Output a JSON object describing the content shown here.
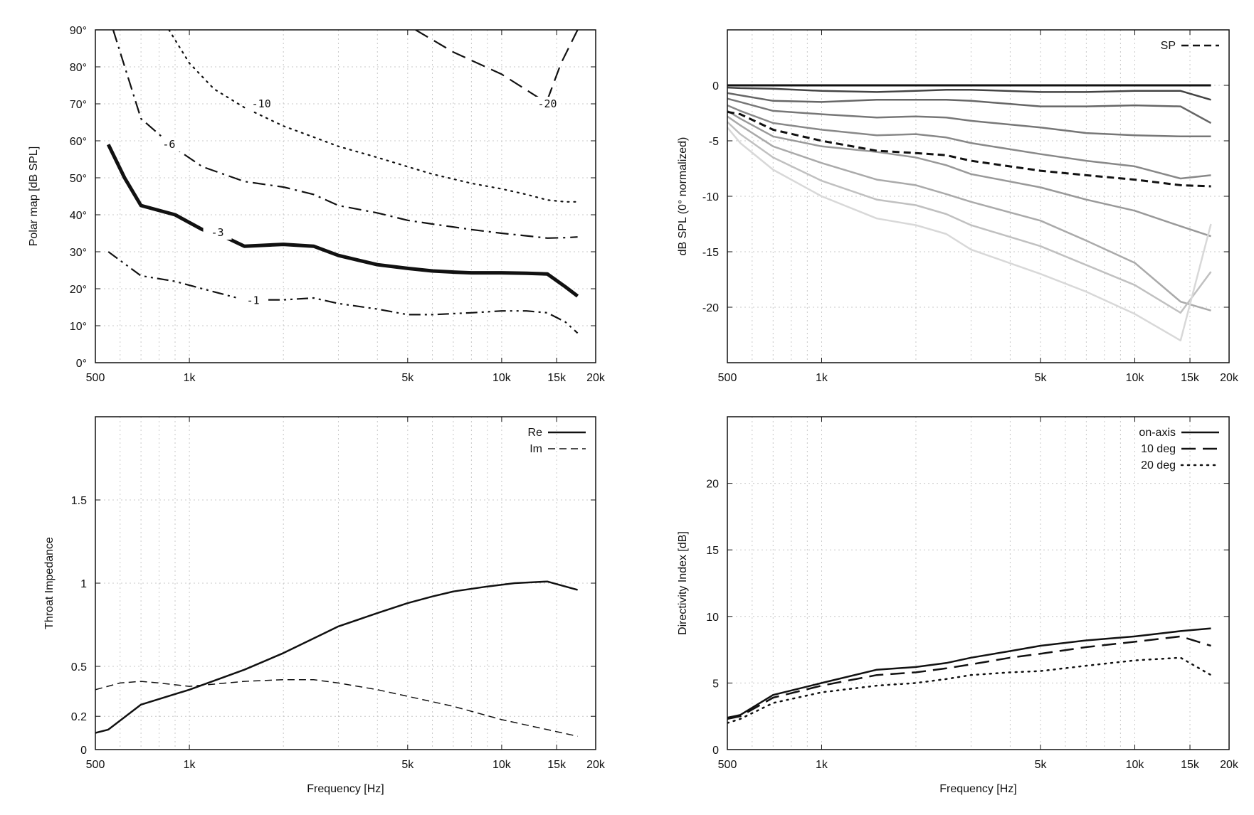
{
  "chart_data": [
    {
      "type": "line",
      "id": "polar-map",
      "xscale": "log",
      "xlim": [
        500,
        20000
      ],
      "ylim": [
        0,
        90
      ],
      "grid": true,
      "xlabel": "",
      "ylabel": "Polar map [dB SPL]",
      "xticks": [
        {
          "v": 500,
          "label": "500"
        },
        {
          "v": 1000,
          "label": "1k"
        },
        {
          "v": 5000,
          "label": "5k"
        },
        {
          "v": 10000,
          "label": "10k"
        },
        {
          "v": 15000,
          "label": "15k"
        },
        {
          "v": 20000,
          "label": "20k"
        }
      ],
      "yticks": [
        {
          "v": 0,
          "label": "0°"
        },
        {
          "v": 10,
          "label": "10°"
        },
        {
          "v": 20,
          "label": "20°"
        },
        {
          "v": 30,
          "label": "30°"
        },
        {
          "v": 40,
          "label": "40°"
        },
        {
          "v": 50,
          "label": "50°"
        },
        {
          "v": 60,
          "label": "60°"
        },
        {
          "v": 70,
          "label": "70°"
        },
        {
          "v": 80,
          "label": "80°"
        },
        {
          "v": 90,
          "label": "90°"
        }
      ],
      "series": [
        {
          "label": "-1",
          "style": "dashdotdot",
          "width": 2.2,
          "x": [
            550,
            700,
            900,
            1100,
            1500,
            2000,
            2500,
            3000,
            4000,
            5000,
            6000,
            8000,
            10000,
            12000,
            14000,
            16000,
            17500
          ],
          "y": [
            30,
            23.5,
            22,
            20,
            17,
            17,
            17.5,
            16,
            14.5,
            13,
            13,
            13.5,
            14,
            14,
            13.5,
            11,
            8
          ]
        },
        {
          "label": "-3",
          "style": "solid",
          "width": 5,
          "x": [
            550,
            620,
            700,
            900,
            1100,
            1300,
            1500,
            2000,
            2500,
            3000,
            4000,
            5000,
            6000,
            7000,
            8000,
            10000,
            12000,
            14000,
            16000,
            17500
          ],
          "y": [
            59,
            50,
            42.5,
            40,
            36,
            34,
            31.5,
            32,
            31.5,
            29,
            26.5,
            25.5,
            24.8,
            24.5,
            24.3,
            24.3,
            24.2,
            24,
            20.5,
            18
          ]
        },
        {
          "label": "-6",
          "style": "dashdot",
          "width": 2.2,
          "x": [
            570,
            700,
            900,
            1100,
            1500,
            2000,
            2500,
            3000,
            4000,
            5000,
            6000,
            8000,
            10000,
            12000,
            14000,
            16000,
            17500
          ],
          "y": [
            90,
            66,
            58,
            53,
            49,
            47.5,
            45.5,
            42.5,
            40.5,
            38.5,
            37.5,
            36,
            35,
            34.3,
            33.7,
            33.8,
            34
          ]
        },
        {
          "label": "-10",
          "style": "dotted",
          "width": 2.2,
          "x": [
            860,
            1000,
            1200,
            1500,
            2000,
            2500,
            3000,
            4000,
            5000,
            6000,
            8000,
            10000,
            12000,
            14000,
            16000,
            17500
          ],
          "y": [
            90,
            81,
            74,
            69,
            64,
            61,
            58.5,
            55.5,
            53,
            51,
            48.5,
            47,
            45.5,
            44,
            43.5,
            43.5
          ]
        },
        {
          "label": "-20",
          "style": "longdash",
          "width": 2.2,
          "x": [
            5300,
            7000,
            10000,
            13500,
            14000,
            15500,
            17500
          ],
          "y": [
            90,
            84,
            78,
            71,
            71,
            81,
            90
          ]
        }
      ],
      "contour_labels": [
        {
          "text": "-1",
          "x": 1600,
          "y": 16.8
        },
        {
          "text": "-3",
          "x": 1230,
          "y": 35.2
        },
        {
          "text": "-6",
          "x": 860,
          "y": 59
        },
        {
          "text": "-10",
          "x": 1700,
          "y": 70
        },
        {
          "text": "-20",
          "x": 14000,
          "y": 70
        }
      ]
    },
    {
      "type": "line",
      "id": "spl-normalized",
      "xscale": "log",
      "xlim": [
        500,
        20000
      ],
      "ylim": [
        -25,
        5
      ],
      "grid": true,
      "xlabel": "",
      "ylabel": "dB SPL (0° normalized)",
      "legend": "top-right",
      "legend_entries": [
        {
          "name": "SP",
          "style": "dashed"
        }
      ],
      "xticks": [
        {
          "v": 500,
          "label": "500"
        },
        {
          "v": 1000,
          "label": "1k"
        },
        {
          "v": 5000,
          "label": "5k"
        },
        {
          "v": 10000,
          "label": "10k"
        },
        {
          "v": 15000,
          "label": "15k"
        },
        {
          "v": 20000,
          "label": "20k"
        }
      ],
      "yticks": [
        {
          "v": 0,
          "label": "0"
        },
        {
          "v": -5,
          "label": "-5"
        },
        {
          "v": -10,
          "label": "-10"
        },
        {
          "v": -15,
          "label": "-15"
        },
        {
          "v": -20,
          "label": "-20"
        }
      ],
      "x": [
        500,
        550,
        700,
        1000,
        1500,
        2000,
        2500,
        3000,
        5000,
        7000,
        10000,
        14000,
        17500
      ],
      "series": [
        {
          "color": "#111111",
          "width": 3,
          "y": [
            0,
            0,
            0,
            0,
            0,
            0,
            0,
            0,
            0,
            0,
            0,
            0,
            0
          ]
        },
        {
          "color": "#444444",
          "width": 2.5,
          "y": [
            -0.2,
            -0.25,
            -0.3,
            -0.5,
            -0.6,
            -0.5,
            -0.4,
            -0.4,
            -0.6,
            -0.6,
            -0.5,
            -0.5,
            -1.3
          ]
        },
        {
          "color": "#666666",
          "width": 2.5,
          "y": [
            -0.7,
            -0.9,
            -1.4,
            -1.5,
            -1.3,
            -1.3,
            -1.3,
            -1.4,
            -1.9,
            -1.9,
            -1.8,
            -1.9,
            -3.4
          ]
        },
        {
          "color": "#777777",
          "width": 2.5,
          "y": [
            -1.2,
            -1.5,
            -2.3,
            -2.6,
            -2.9,
            -2.8,
            -2.9,
            -3.2,
            -3.8,
            -4.3,
            -4.5,
            -4.6,
            -4.6
          ]
        },
        {
          "color": "#888888",
          "width": 2.5,
          "y": [
            -1.8,
            -2.3,
            -3.4,
            -4.0,
            -4.5,
            -4.4,
            -4.7,
            -5.2,
            -6.2,
            -6.8,
            -7.3,
            -8.4,
            -8.1
          ]
        },
        {
          "color": "#999999",
          "width": 2.5,
          "y": [
            -2.3,
            -3.0,
            -4.6,
            -5.5,
            -6.0,
            -6.5,
            -7.2,
            -8.0,
            -9.2,
            -10.3,
            -11.3,
            -12.7,
            -13.6
          ]
        },
        {
          "color": "#aaaaaa",
          "width": 2.5,
          "y": [
            -2.8,
            -3.6,
            -5.5,
            -7.0,
            -8.5,
            -9.0,
            -9.8,
            -10.5,
            -12.2,
            -14.0,
            -16.0,
            -19.5,
            -20.3
          ]
        },
        {
          "color": "#c0c0c0",
          "width": 2.5,
          "y": [
            -3.3,
            -4.4,
            -6.5,
            -8.6,
            -10.3,
            -10.8,
            -11.6,
            -12.6,
            -14.5,
            -16.2,
            -18.0,
            -20.5,
            -16.8
          ]
        },
        {
          "color": "#d8d8d8",
          "width": 2.5,
          "y": [
            -3.8,
            -5.2,
            -7.6,
            -10.0,
            -12.0,
            -12.6,
            -13.4,
            -14.8,
            -17.0,
            -18.6,
            -20.6,
            -23.0,
            -12.5
          ]
        },
        {
          "name": "SP",
          "color": "#111111",
          "width": 3,
          "style": "dashed",
          "y": [
            -2.4,
            -2.6,
            -4.0,
            -5.0,
            -5.9,
            -6.1,
            -6.3,
            -6.8,
            -7.7,
            -8.1,
            -8.5,
            -9.0,
            -9.1
          ]
        }
      ]
    },
    {
      "type": "line",
      "id": "throat-impedance",
      "xscale": "log",
      "xlim": [
        500,
        20000
      ],
      "ylim": [
        0,
        2
      ],
      "grid": true,
      "xlabel": "Frequency [Hz]",
      "ylabel": "Throat Impedance",
      "legend": "top-right",
      "xticks": [
        {
          "v": 500,
          "label": "500"
        },
        {
          "v": 1000,
          "label": "1k"
        },
        {
          "v": 5000,
          "label": "5k"
        },
        {
          "v": 10000,
          "label": "10k"
        },
        {
          "v": 15000,
          "label": "15k"
        },
        {
          "v": 20000,
          "label": "20k"
        }
      ],
      "yticks": [
        {
          "v": 0,
          "label": "0"
        },
        {
          "v": 0.2,
          "label": "0.2"
        },
        {
          "v": 0.5,
          "label": "0.5"
        },
        {
          "v": 1,
          "label": "1"
        },
        {
          "v": 1.5,
          "label": "1.5"
        }
      ],
      "series": [
        {
          "name": "Re",
          "style": "solid",
          "width": 2.5,
          "x": [
            500,
            550,
            700,
            1000,
            1500,
            2000,
            3000,
            4000,
            5000,
            6000,
            7000,
            9000,
            11000,
            14000,
            17500
          ],
          "y": [
            0.1,
            0.12,
            0.27,
            0.36,
            0.48,
            0.58,
            0.74,
            0.82,
            0.88,
            0.92,
            0.95,
            0.98,
            1.0,
            1.01,
            0.96
          ]
        },
        {
          "name": "Im",
          "style": "dashed",
          "width": 1.5,
          "x": [
            500,
            600,
            700,
            800,
            1000,
            1500,
            2000,
            2500,
            3000,
            4000,
            5000,
            7000,
            10000,
            14000,
            17500
          ],
          "y": [
            0.36,
            0.4,
            0.41,
            0.4,
            0.38,
            0.41,
            0.42,
            0.42,
            0.4,
            0.36,
            0.32,
            0.26,
            0.18,
            0.12,
            0.08
          ]
        }
      ]
    },
    {
      "type": "line",
      "id": "directivity-index",
      "xscale": "log",
      "xlim": [
        500,
        20000
      ],
      "ylim": [
        0,
        25
      ],
      "grid": true,
      "xlabel": "Frequency [Hz]",
      "ylabel": "Directivity Index [dB]",
      "legend": "top-right",
      "xticks": [
        {
          "v": 500,
          "label": "500"
        },
        {
          "v": 1000,
          "label": "1k"
        },
        {
          "v": 5000,
          "label": "5k"
        },
        {
          "v": 10000,
          "label": "10k"
        },
        {
          "v": 15000,
          "label": "15k"
        },
        {
          "v": 20000,
          "label": "20k"
        }
      ],
      "yticks": [
        {
          "v": 0,
          "label": "0"
        },
        {
          "v": 5,
          "label": "5"
        },
        {
          "v": 10,
          "label": "10"
        },
        {
          "v": 15,
          "label": "15"
        },
        {
          "v": 20,
          "label": "20"
        }
      ],
      "series": [
        {
          "name": "on-axis",
          "style": "solid",
          "width": 2.5,
          "x": [
            500,
            550,
            700,
            1000,
            1500,
            2000,
            2500,
            3000,
            4000,
            5000,
            7000,
            10000,
            14000,
            17500
          ],
          "y": [
            2.4,
            2.6,
            4.1,
            5.0,
            6.0,
            6.2,
            6.5,
            6.9,
            7.4,
            7.8,
            8.2,
            8.5,
            8.9,
            9.1
          ]
        },
        {
          "name": "10 deg",
          "style": "longdash",
          "width": 2.5,
          "x": [
            500,
            550,
            700,
            1000,
            1500,
            2000,
            2500,
            3000,
            4000,
            5000,
            7000,
            10000,
            14000,
            17500
          ],
          "y": [
            2.3,
            2.5,
            3.9,
            4.8,
            5.6,
            5.8,
            6.1,
            6.4,
            6.9,
            7.2,
            7.7,
            8.1,
            8.5,
            7.8
          ]
        },
        {
          "name": "20 deg",
          "style": "dotted",
          "width": 2.5,
          "x": [
            500,
            550,
            700,
            1000,
            1500,
            2000,
            2500,
            3000,
            4000,
            5000,
            7000,
            10000,
            14000,
            17500
          ],
          "y": [
            2.0,
            2.3,
            3.5,
            4.3,
            4.8,
            5.0,
            5.3,
            5.6,
            5.8,
            5.9,
            6.3,
            6.7,
            6.9,
            5.6
          ]
        }
      ]
    }
  ]
}
